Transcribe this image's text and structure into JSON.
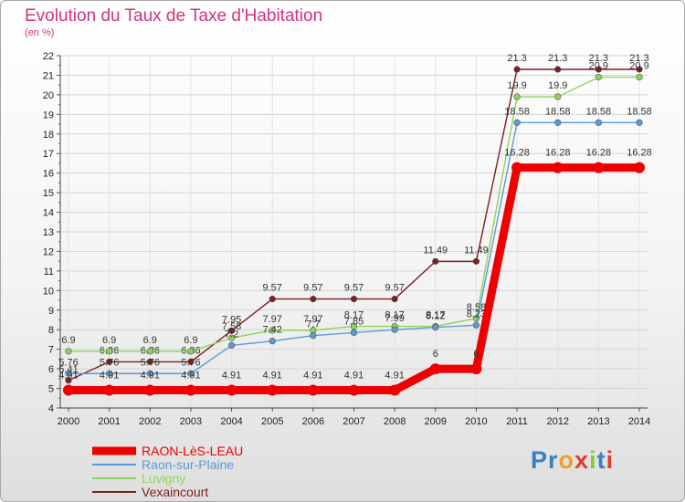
{
  "header": {
    "title": "Evolution du Taux de Taxe d'Habitation",
    "unit": "(en %)"
  },
  "logo": {
    "text": "Proxiti",
    "letters": [
      "P",
      "r",
      "o",
      "x",
      "i",
      "t",
      "i"
    ],
    "colors": [
      "#3a7fc8",
      "#3a7fc8",
      "#f0a01e",
      "#e6382c",
      "#8cc63f",
      "#3a7fc8",
      "#e6382c"
    ]
  },
  "chart_data": {
    "type": "line",
    "x": [
      "2000",
      "2001",
      "2002",
      "2003",
      "2004",
      "2005",
      "2006",
      "2007",
      "2008",
      "2009",
      "2010",
      "2011",
      "2012",
      "2013",
      "2014"
    ],
    "ylim": [
      4,
      22
    ],
    "yticks": [
      "4",
      "5",
      "6",
      "7",
      "8",
      "9",
      "10",
      "11",
      "12",
      "13",
      "14",
      "15",
      "16",
      "17",
      "18",
      "19",
      "20",
      "21",
      "22"
    ],
    "grid": true,
    "legend_position": "bottom-left",
    "series": [
      {
        "name": "RAON-LèS-LEAU",
        "color": "#ee0000",
        "values": [
          4.91,
          4.91,
          4.91,
          4.91,
          4.91,
          4.91,
          4.91,
          4.91,
          4.91,
          6,
          6,
          16.28,
          16.28,
          16.28,
          16.28
        ],
        "labels": [
          "4.91",
          "4.91",
          "4.91",
          "4.91",
          "4.91",
          "4.91",
          "4.91",
          "4.91",
          "4.91",
          "6",
          "6",
          "16.28",
          "16.28",
          "16.28",
          "16.28"
        ]
      },
      {
        "name": "Raon-sur-Plaine",
        "color": "#5b9bd5",
        "values": [
          5.76,
          5.76,
          5.76,
          5.76,
          7.2,
          7.42,
          7.7,
          7.85,
          8.0,
          8.12,
          8.23,
          18.58,
          18.58,
          18.58,
          18.58
        ],
        "labels": [
          "5.76",
          "5.76",
          "5.76",
          "5.76",
          "7.2",
          "7.42",
          "7.7",
          "7.85",
          "7.99",
          "8.12",
          "8.23",
          "18.58",
          "18.58",
          "18.58",
          "18.58"
        ]
      },
      {
        "name": "Luvigny",
        "color": "#8ed45a",
        "values": [
          6.9,
          6.9,
          6.9,
          6.9,
          7.58,
          7.97,
          7.97,
          8.17,
          8.17,
          8.17,
          8.58,
          19.9,
          19.9,
          20.9,
          20.9
        ],
        "labels": [
          "6.9",
          "6.9",
          "6.9",
          "6.9",
          "7.58",
          "7.97",
          "7.97",
          "8.17",
          "8.17",
          "8.17",
          "8.58",
          "19.9",
          "19.9",
          "20.9",
          "20.9"
        ]
      },
      {
        "name": "Vexaincourt",
        "color": "#7a1f1f",
        "values": [
          5.41,
          6.36,
          6.36,
          6.36,
          7.95,
          9.57,
          9.57,
          9.57,
          9.57,
          11.49,
          11.49,
          21.3,
          21.3,
          21.3,
          21.3
        ],
        "labels": [
          "5.41",
          "6.36",
          "6.36",
          "6.36",
          "7.95",
          "9.57",
          "9.57",
          "9.57",
          "9.57",
          "11.49",
          "11.49",
          "21.3",
          "21.3",
          "21.3",
          "21.3"
        ]
      }
    ]
  }
}
